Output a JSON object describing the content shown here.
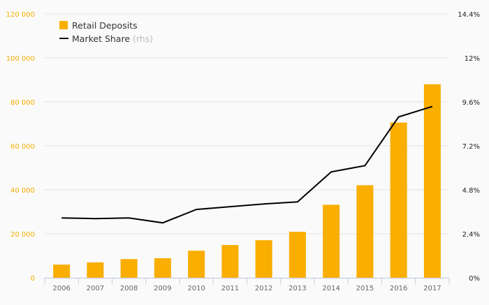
{
  "chart_data": {
    "type": "bar",
    "title": "",
    "categories": [
      "2006",
      "2007",
      "2008",
      "2009",
      "2010",
      "2011",
      "2012",
      "2013",
      "2014",
      "2015",
      "2016",
      "2017"
    ],
    "series": [
      {
        "name": "Retail Deposits",
        "type": "bar",
        "axis": "left",
        "color": "#f9ae00",
        "values": [
          6000,
          7000,
          8500,
          8900,
          12300,
          14900,
          17100,
          20900,
          33200,
          42100,
          70600,
          88000
        ]
      },
      {
        "name": "Market Share",
        "name_suffix": "(rhs)",
        "type": "line",
        "axis": "right",
        "color": "#000000",
        "values": [
          3.27,
          3.23,
          3.27,
          3.0,
          3.73,
          3.88,
          4.03,
          4.14,
          5.78,
          6.12,
          8.78,
          9.35
        ]
      }
    ],
    "left_axis": {
      "ylim": [
        0,
        120000
      ],
      "ticks": [
        0,
        20000,
        40000,
        60000,
        80000,
        100000,
        120000
      ],
      "tick_labels": [
        "0",
        "20 000",
        "40 000",
        "60 000",
        "80 000",
        "100 000",
        "120 000"
      ],
      "color": "#f9ae00"
    },
    "right_axis": {
      "ylim": [
        0,
        14.4
      ],
      "ticks": [
        0,
        2.4,
        4.8,
        7.2,
        9.6,
        12,
        14.4
      ],
      "tick_labels": [
        "0%",
        "2.4%",
        "4.8%",
        "7.2%",
        "9.6%",
        "12%",
        "14.4%"
      ]
    },
    "grid": true,
    "legend": "top-left"
  }
}
